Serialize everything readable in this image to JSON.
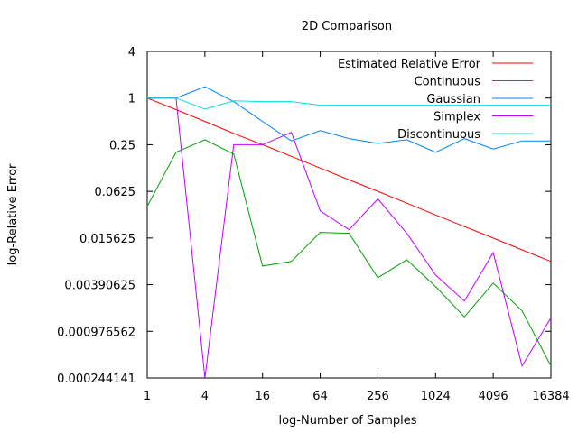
{
  "chart_data": {
    "type": "line",
    "title": "2D Comparison",
    "xlabel": "log-Number of Samples",
    "ylabel": "log-Relative Error",
    "x_scale": "log2",
    "y_scale": "log2",
    "xlim": [
      1,
      16384
    ],
    "ylim": [
      0.000244141,
      4
    ],
    "x_ticks": [
      1,
      4,
      16,
      64,
      256,
      1024,
      4096,
      16384
    ],
    "x_tick_labels": [
      "1",
      "4",
      "16",
      "64",
      "256",
      "1024",
      "4096",
      "16384"
    ],
    "y_ticks": [
      0.000244141,
      0.000976562,
      0.00390625,
      0.015625,
      0.0625,
      0.25,
      1,
      4
    ],
    "y_tick_labels": [
      "0.000244141",
      "0.000976562",
      "0.00390625",
      "0.015625",
      "0.0625",
      "0.25",
      "1",
      "4"
    ],
    "grid": false,
    "legend_position": "top-right",
    "x": [
      1,
      2,
      4,
      8,
      16,
      32,
      64,
      128,
      256,
      512,
      1024,
      2048,
      4096,
      8192,
      16384
    ],
    "series": [
      {
        "name": "Estimated Relative Error",
        "color": "#ff0000",
        "values": [
          1,
          0.71,
          0.5,
          0.35,
          0.25,
          0.177,
          0.125,
          0.088,
          0.0625,
          0.044,
          0.031,
          0.022,
          0.0156,
          0.011,
          0.0078
        ]
      },
      {
        "name": "Continuous",
        "color": "#00a000",
        "values": [
          0.04,
          0.2,
          0.29,
          0.19,
          0.0068,
          0.0078,
          0.0185,
          0.018,
          0.0048,
          0.0082,
          0.0037,
          0.0015,
          0.0041,
          0.0018,
          0.00035
        ]
      },
      {
        "name": "Gaussian",
        "color": "#0080ff",
        "values": [
          1,
          1,
          1.4,
          0.9,
          0.5,
          0.28,
          0.38,
          0.3,
          0.26,
          0.29,
          0.2,
          0.3,
          0.22,
          0.28,
          0.28
        ]
      },
      {
        "name": "Simplex",
        "color": "#c000ff",
        "values": [
          1,
          1,
          null,
          0.25,
          0.25,
          0.36,
          0.035,
          0.02,
          0.05,
          0.018,
          0.0052,
          0.0024,
          0.0101,
          0.00035,
          0.00145
        ]
      },
      {
        "name": "Discontinuous",
        "color": "#00e0e0",
        "values": [
          1,
          1,
          0.72,
          0.92,
          0.9,
          0.9,
          0.81,
          0.81,
          0.81,
          0.81,
          0.81,
          0.81,
          0.81,
          0.81,
          0.81
        ]
      }
    ]
  }
}
